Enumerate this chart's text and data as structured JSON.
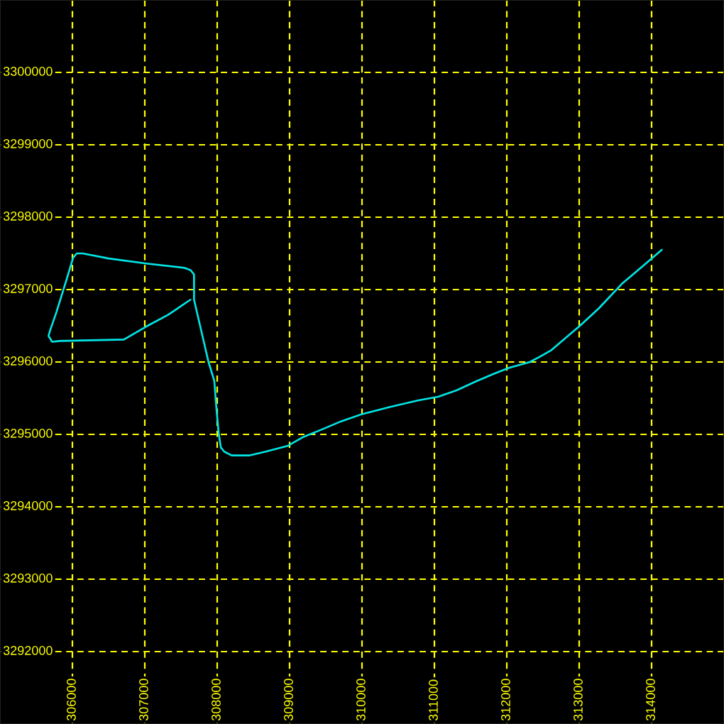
{
  "chart_data": {
    "type": "line",
    "xlim": [
      305000,
      315000
    ],
    "ylim": [
      3291000,
      3301000
    ],
    "xticks": [
      306000,
      307000,
      308000,
      309000,
      310000,
      311000,
      312000,
      313000,
      314000
    ],
    "yticks": [
      3292000,
      3293000,
      3294000,
      3295000,
      3296000,
      3297000,
      3298000,
      3299000,
      3300000
    ],
    "grid": true,
    "series": [
      {
        "color": "#00e6e6",
        "x": [
          307630,
          307320,
          307020,
          306710,
          305820,
          305720,
          305670,
          305690,
          305780,
          305920,
          306010,
          306060,
          306140,
          306500,
          307020,
          307550,
          307630,
          307680,
          307680,
          307880,
          307960,
          307990,
          308020,
          308050,
          308100,
          308200,
          308450,
          308660,
          308970,
          309180,
          309450,
          309710,
          310000,
          310390,
          310780,
          311050,
          311310,
          311570,
          311830,
          312030,
          312320,
          312450,
          312610,
          312810,
          313010,
          313270,
          313590,
          313860,
          314140
        ],
        "values": [
          3296860,
          3296650,
          3296490,
          3296310,
          3296290,
          3296280,
          3296360,
          3296430,
          3296690,
          3297140,
          3297440,
          3297500,
          3297500,
          3297430,
          3297360,
          3297300,
          3297270,
          3297210,
          3296860,
          3296000,
          3295740,
          3295350,
          3295020,
          3294820,
          3294760,
          3294710,
          3294710,
          3294760,
          3294840,
          3294960,
          3295070,
          3295180,
          3295280,
          3295380,
          3295470,
          3295520,
          3295610,
          3295730,
          3295840,
          3295920,
          3296000,
          3296070,
          3296160,
          3296330,
          3296500,
          3296740,
          3297080,
          3297310,
          3297550
        ]
      }
    ]
  }
}
